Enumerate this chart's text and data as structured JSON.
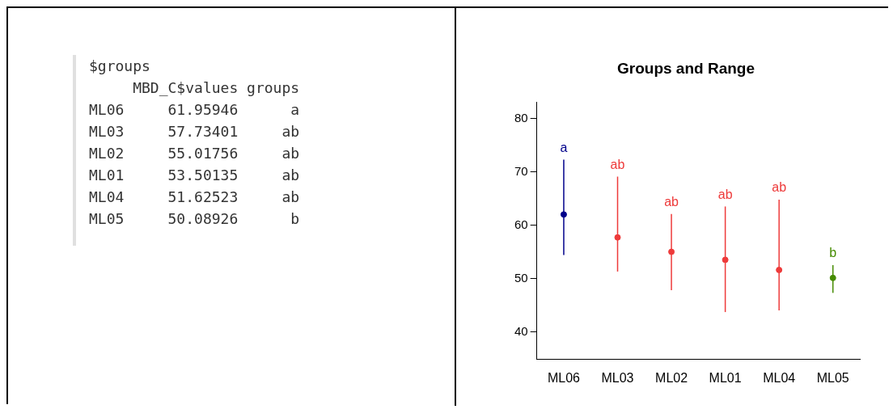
{
  "chart_data": [
    {
      "type": "other",
      "title": "$groups",
      "annotations": [
        "     MBD_C$values groups",
        "ML06     61.95946      a",
        "ML03     57.73401     ab",
        "ML02     55.01756     ab",
        "ML01     53.50135     ab",
        "ML04     51.62523     ab",
        "ML05     50.08926      b"
      ]
    },
    {
      "type": "scatter",
      "title": "Groups and Range",
      "categories": [
        "ML06",
        "ML03",
        "ML02",
        "ML01",
        "ML04",
        "ML05"
      ],
      "values": [
        62.0,
        57.7,
        55.0,
        53.5,
        51.6,
        50.1
      ],
      "errors": [
        [
          54.4,
          72.3
        ],
        [
          51.3,
          69.1
        ],
        [
          47.8,
          62.1
        ],
        [
          43.7,
          63.5
        ],
        [
          44.0,
          64.8
        ],
        [
          47.3,
          52.5
        ]
      ],
      "colors": [
        "#00008b",
        "#ee3b3b",
        "#ee3b3b",
        "#ee3b3b",
        "#ee3b3b",
        "#458b00"
      ],
      "annotations": [
        {
          "text": "a",
          "x": "ML06",
          "y": 72.3
        },
        {
          "text": "ab",
          "x": "ML03",
          "y": 69.1
        },
        {
          "text": "ab",
          "x": "ML02",
          "y": 62.1
        },
        {
          "text": "ab",
          "x": "ML01",
          "y": 63.5
        },
        {
          "text": "ab",
          "x": "ML04",
          "y": 64.8
        },
        {
          "text": "b",
          "x": "ML05",
          "y": 52.5
        }
      ],
      "ylim": [
        34.8,
        83
      ],
      "yticks": [
        40,
        50,
        60,
        70,
        80
      ],
      "marker": "circle"
    }
  ]
}
